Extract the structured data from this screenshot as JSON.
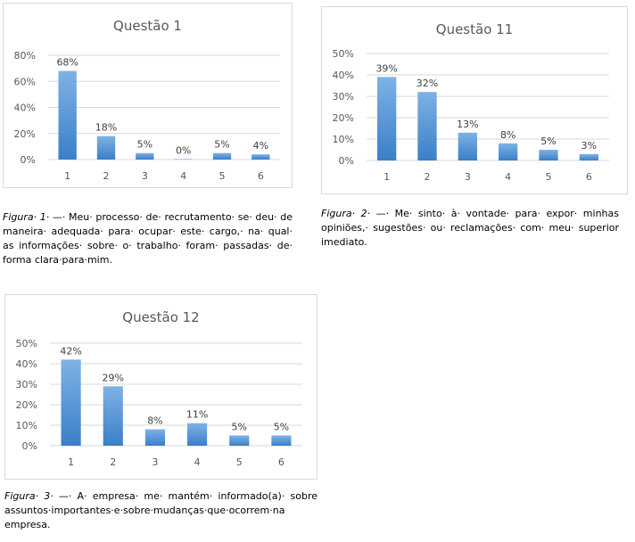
{
  "colors": {
    "bar_top": "#7fb2e6",
    "bar_bottom": "#3a7fc7",
    "grid": "#d9d9d9",
    "text": "#595959"
  },
  "chart_data": [
    {
      "type": "bar",
      "title": "Questão 1",
      "categories": [
        "1",
        "2",
        "3",
        "4",
        "5",
        "6"
      ],
      "values": [
        68,
        18,
        5,
        0,
        5,
        4
      ],
      "value_labels": [
        "68%",
        "18%",
        "5%",
        "0%",
        "5%",
        "4%"
      ],
      "ylim": [
        0,
        80
      ],
      "yticks": [
        0,
        20,
        40,
        60,
        80
      ],
      "ytick_labels": [
        "0%",
        "20%",
        "40%",
        "60%",
        "80%"
      ],
      "grid": true,
      "xlabel": "",
      "ylabel": ""
    },
    {
      "type": "bar",
      "title": "Questão 11",
      "categories": [
        "1",
        "2",
        "3",
        "4",
        "5",
        "6"
      ],
      "values": [
        39,
        32,
        13,
        8,
        5,
        3
      ],
      "value_labels": [
        "39%",
        "32%",
        "13%",
        "8%",
        "5%",
        "3%"
      ],
      "ylim": [
        0,
        50
      ],
      "yticks": [
        0,
        10,
        20,
        30,
        40,
        50
      ],
      "ytick_labels": [
        "0%",
        "10%",
        "20%",
        "30%",
        "40%",
        "50%"
      ],
      "grid": true,
      "xlabel": "",
      "ylabel": ""
    },
    {
      "type": "bar",
      "title": "Questão 12",
      "categories": [
        "1",
        "2",
        "3",
        "4",
        "5",
        "6"
      ],
      "values": [
        42,
        29,
        8,
        11,
        5,
        5
      ],
      "value_labels": [
        "42%",
        "29%",
        "8%",
        "11%",
        "5%",
        "5%"
      ],
      "ylim": [
        0,
        50
      ],
      "yticks": [
        0,
        10,
        20,
        30,
        40,
        50
      ],
      "ytick_labels": [
        "0%",
        "10%",
        "20%",
        "30%",
        "40%",
        "50%"
      ],
      "grid": true,
      "xlabel": "",
      "ylabel": ""
    }
  ],
  "captions": [
    {
      "label": "Figura· 1·",
      "text": " —· Meu· processo· de· recrutamento· se· deu· de maneira· adequada· para· ocupar· este· cargo,· na· qual· as informações· sobre· o· trabalho· foram· passadas· de· forma clara·para·mim."
    },
    {
      "label": "Figura· 2·",
      "text": " —· Me· sinto· à· vontade· para· expor· minhas opiniões,· sugestões· ou· reclamações· com· meu· superior imediato."
    },
    {
      "label": "Figura· 3·",
      "text": " —· A· empresa· me· mantém· informado(a)· sobre assuntos·importantes·e·sobre·mudanças·que·ocorrem·na empresa."
    }
  ]
}
